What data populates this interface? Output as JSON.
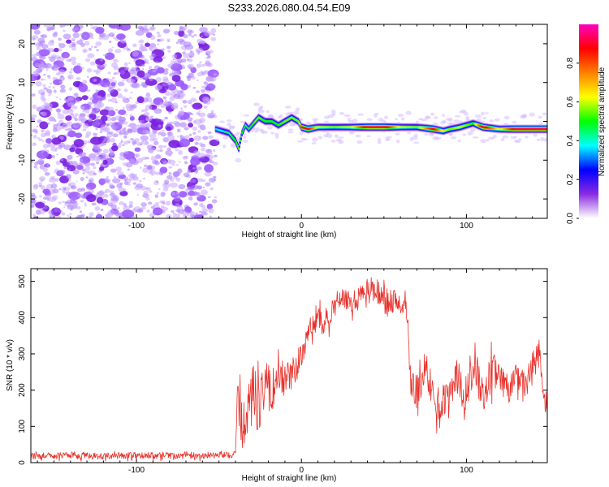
{
  "title": "S233.2026.080.04.54.E09",
  "chart_data": [
    {
      "type": "heatmap",
      "name": "spectrogram",
      "xlabel": "Height of straight line (km)",
      "ylabel": "Frequency (Hz)",
      "xlim": [
        -164,
        149
      ],
      "ylim": [
        -25,
        25
      ],
      "xticks": [
        -100,
        0,
        100
      ],
      "yticks": [
        -20,
        -10,
        0,
        10,
        20
      ],
      "noise_region_x": [
        -164,
        -52
      ],
      "colorbar": {
        "label": "Normalized spectral amplitude",
        "range": [
          0,
          1
        ],
        "ticks": [
          "0.0",
          "0.2",
          "0.4",
          "0.6",
          "0.8"
        ],
        "colors": [
          "#ffffff",
          "#8a2be2",
          "#0000ff",
          "#00ffff",
          "#00ff00",
          "#ffff00",
          "#ff8000",
          "#ff0000",
          "#ff00c0"
        ]
      },
      "ridge": {
        "x": [
          -52,
          -48,
          -44,
          -40,
          -38,
          -36,
          -34,
          -32,
          -30,
          -28,
          -26,
          -22,
          -18,
          -14,
          -10,
          -6,
          -2,
          0,
          4,
          10,
          20,
          30,
          40,
          50,
          60,
          70,
          80,
          86,
          90,
          96,
          100,
          104,
          110,
          120,
          130,
          149
        ],
        "y": [
          -2,
          -2.5,
          -3,
          -5,
          -7,
          -3,
          -1,
          -2,
          -1,
          0,
          1,
          0,
          0,
          -1,
          0,
          1,
          0,
          -1.5,
          -2,
          -1.5,
          -1.5,
          -1.5,
          -1.5,
          -1.5,
          -1.5,
          -1.5,
          -2,
          -2.5,
          -2,
          -1.5,
          -1,
          -0.5,
          -1.5,
          -2,
          -2,
          -2
        ],
        "amp": [
          0.35,
          0.4,
          0.45,
          0.5,
          0.55,
          0.5,
          0.45,
          0.45,
          0.5,
          0.55,
          0.55,
          0.5,
          0.5,
          0.5,
          0.55,
          0.55,
          0.55,
          0.85,
          0.9,
          0.6,
          0.55,
          0.6,
          0.95,
          0.95,
          0.6,
          0.55,
          0.9,
          0.6,
          0.55,
          0.6,
          0.55,
          0.5,
          0.95,
          0.6,
          0.95,
          0.95
        ]
      }
    },
    {
      "type": "line",
      "name": "snr",
      "xlabel": "Height of straight line (km)",
      "ylabel": "SNR (10 * v/v)",
      "xlim": [
        -164,
        149
      ],
      "ylim": [
        0,
        535
      ],
      "xticks": [
        -100,
        0,
        100
      ],
      "yticks": [
        0,
        100,
        200,
        300,
        400,
        500
      ],
      "color": "#e8302a",
      "series": [
        {
          "x": [
            -164,
            -140,
            -120,
            -100,
            -80,
            -60,
            -40,
            -39,
            -36,
            -34,
            -30,
            -26,
            -22,
            -18,
            -14,
            -10,
            -6,
            -2,
            2,
            6,
            10,
            14,
            18,
            22,
            26,
            30,
            34,
            38,
            42,
            46,
            50,
            54,
            58,
            62,
            64,
            66,
            70,
            76,
            82,
            88,
            94,
            100,
            104,
            110,
            116,
            120,
            126,
            130,
            136,
            140,
            144,
            148,
            149
          ],
          "y": [
            18,
            20,
            18,
            20,
            20,
            20,
            22,
            180,
            100,
            90,
            220,
            150,
            240,
            190,
            260,
            220,
            250,
            270,
            330,
            360,
            390,
            390,
            410,
            440,
            450,
            440,
            450,
            470,
            480,
            470,
            460,
            440,
            450,
            430,
            420,
            230,
            200,
            250,
            160,
            180,
            240,
            170,
            270,
            180,
            260,
            230,
            200,
            240,
            210,
            270,
            300,
            160,
            180
          ],
          "noise": [
            10,
            10,
            10,
            10,
            10,
            10,
            10,
            70,
            80,
            60,
            70,
            80,
            70,
            70,
            60,
            60,
            50,
            50,
            50,
            50,
            45,
            40,
            40,
            40,
            35,
            35,
            35,
            35,
            35,
            35,
            35,
            35,
            35,
            35,
            35,
            60,
            50,
            50,
            50,
            50,
            50,
            60,
            60,
            60,
            60,
            50,
            40,
            40,
            40,
            40,
            40,
            50,
            50
          ]
        }
      ]
    }
  ]
}
